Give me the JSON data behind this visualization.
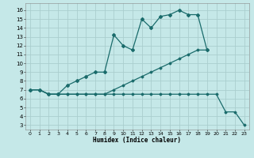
{
  "xlabel": "Humidex (Indice chaleur)",
  "bg_color": "#c5e8e8",
  "grid_color": "#aacece",
  "line_color": "#1a6b6b",
  "xlim": [
    -0.5,
    23.5
  ],
  "ylim": [
    2.5,
    16.8
  ],
  "xticks": [
    0,
    1,
    2,
    3,
    4,
    5,
    6,
    7,
    8,
    9,
    10,
    11,
    12,
    13,
    14,
    15,
    16,
    17,
    18,
    19,
    20,
    21,
    22,
    23
  ],
  "yticks": [
    3,
    4,
    5,
    6,
    7,
    8,
    9,
    10,
    11,
    12,
    13,
    14,
    15,
    16
  ],
  "s1x": [
    0,
    1,
    2,
    3,
    4,
    5,
    6,
    7,
    8,
    9,
    10,
    11,
    12,
    13,
    14,
    15,
    16,
    17,
    18,
    19
  ],
  "s1y": [
    7.0,
    7.0,
    6.5,
    6.5,
    7.5,
    8.0,
    8.5,
    9.0,
    9.0,
    13.2,
    12.0,
    11.5,
    15.0,
    14.0,
    15.3,
    15.5,
    16.0,
    15.5,
    15.5,
    11.5
  ],
  "s2x": [
    0,
    1,
    2,
    3,
    4,
    5,
    6,
    7,
    8,
    9,
    10,
    11,
    12,
    13,
    14,
    15,
    16,
    17,
    18,
    19
  ],
  "s2y": [
    7.0,
    7.0,
    6.5,
    6.5,
    6.5,
    6.5,
    6.5,
    6.5,
    6.5,
    7.0,
    7.5,
    8.0,
    8.5,
    9.0,
    9.5,
    10.0,
    10.5,
    11.0,
    11.5,
    11.5
  ],
  "s3x": [
    0,
    1,
    2,
    3,
    4,
    5,
    6,
    7,
    8,
    9,
    10,
    11,
    12,
    13,
    14,
    15,
    16,
    17,
    18,
    19,
    20,
    21,
    22,
    23
  ],
  "s3y": [
    7.0,
    7.0,
    6.5,
    6.5,
    6.5,
    6.5,
    6.5,
    6.5,
    6.5,
    6.5,
    6.5,
    6.5,
    6.5,
    6.5,
    6.5,
    6.5,
    6.5,
    6.5,
    6.5,
    6.5,
    6.5,
    4.5,
    4.5,
    3.0
  ]
}
